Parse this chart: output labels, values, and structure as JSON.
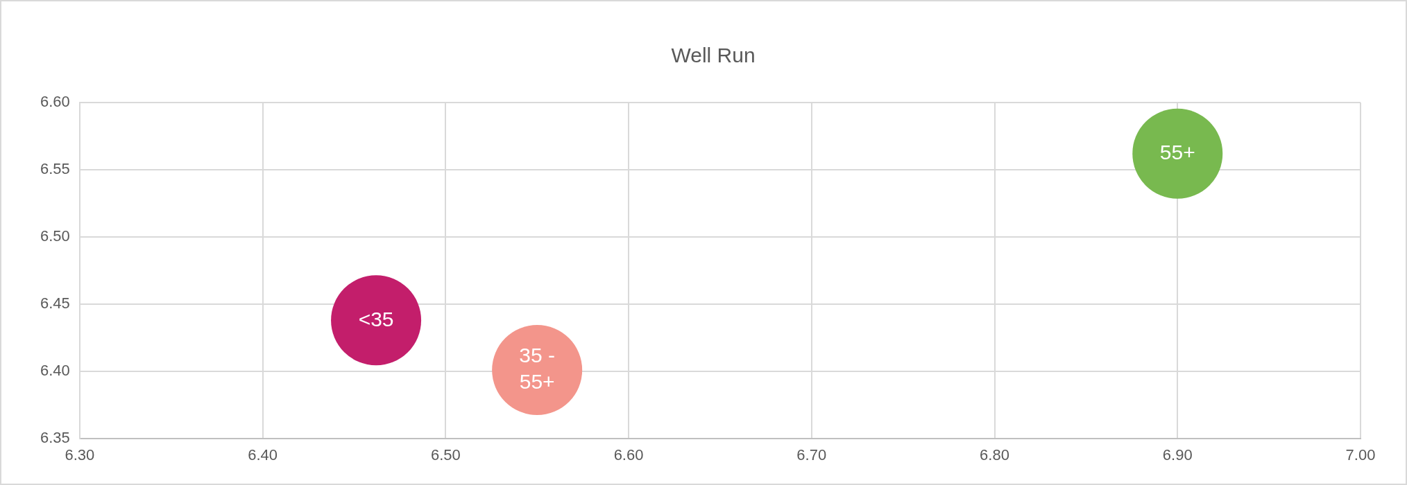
{
  "chart_data": {
    "type": "bubble",
    "title": "Well Run",
    "legend": false,
    "grid": true,
    "xlim": [
      6.3,
      7.0
    ],
    "xticks": [
      {
        "value": 6.3,
        "label": "6.30"
      },
      {
        "value": 6.4,
        "label": "6.40"
      },
      {
        "value": 6.5,
        "label": "6.50"
      },
      {
        "value": 6.6,
        "label": "6.60"
      },
      {
        "value": 6.7,
        "label": "6.70"
      },
      {
        "value": 6.8,
        "label": "6.80"
      },
      {
        "value": 6.9,
        "label": "6.90"
      },
      {
        "value": 7.0,
        "label": "7.00"
      }
    ],
    "ylim": [
      6.35,
      6.6
    ],
    "yticks": [
      {
        "value": 6.35,
        "label": "6.35"
      },
      {
        "value": 6.4,
        "label": "6.40"
      },
      {
        "value": 6.45,
        "label": "6.45"
      },
      {
        "value": 6.5,
        "label": "6.50"
      },
      {
        "value": 6.55,
        "label": "6.55"
      },
      {
        "value": 6.6,
        "label": "6.60"
      }
    ],
    "series": [
      {
        "name": "<35",
        "color": "#c31e6b",
        "x": [
          6.462
        ],
        "values": [
          6.438
        ],
        "sizes": [
          1
        ]
      },
      {
        "name": "35 - 55+",
        "color": "#f3958b",
        "x": [
          6.55
        ],
        "values": [
          6.401
        ],
        "sizes": [
          1
        ]
      },
      {
        "name": "55+",
        "color": "#78b94f",
        "x": [
          6.9
        ],
        "values": [
          6.562
        ],
        "sizes": [
          1
        ]
      }
    ]
  }
}
